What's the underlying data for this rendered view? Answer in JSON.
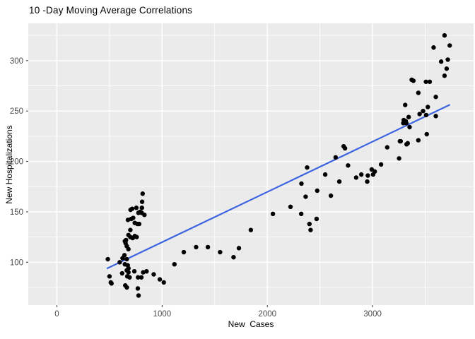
{
  "title": "10 -Day Moving Average Correlations",
  "chart_data": {
    "type": "scatter",
    "title": "10 -Day Moving Average Correlations",
    "xlabel": "New  Cases",
    "ylabel": "New Hospitalizations",
    "legend": false,
    "grid": true,
    "xlim": [
      -272,
      3960
    ],
    "ylim": [
      57.5,
      337
    ],
    "x_ticks": [
      0,
      1000,
      2000,
      3000
    ],
    "x_minor_ticks": [
      500,
      1500,
      2500,
      3500
    ],
    "y_ticks": [
      100,
      150,
      200,
      250,
      300
    ],
    "y_minor_ticks": [
      75,
      125,
      175,
      225,
      275,
      325
    ],
    "panel_bg": "#EBEBEB",
    "grid_color": "#FFFFFF",
    "point_color": "#000000",
    "tick_color": "#333333",
    "tick_label_color": "#4D4D4D",
    "trend_line": {
      "x1": 480,
      "y1": 94,
      "x2": 3730,
      "y2": 256,
      "color": "#3D64E0"
    },
    "points": [
      [
        815,
        168
      ],
      [
        810,
        160
      ],
      [
        808,
        154
      ],
      [
        700,
        152
      ],
      [
        715,
        153
      ],
      [
        755,
        154
      ],
      [
        775,
        149
      ],
      [
        790,
        150
      ],
      [
        806,
        149
      ],
      [
        832,
        147
      ],
      [
        725,
        144
      ],
      [
        675,
        142
      ],
      [
        707,
        143
      ],
      [
        740,
        139
      ],
      [
        765,
        138
      ],
      [
        782,
        138
      ],
      [
        698,
        132
      ],
      [
        680,
        127
      ],
      [
        698,
        125
      ],
      [
        720,
        124
      ],
      [
        740,
        126
      ],
      [
        758,
        125
      ],
      [
        657,
        122
      ],
      [
        646,
        121
      ],
      [
        653,
        119
      ],
      [
        664,
        116
      ],
      [
        680,
        113
      ],
      [
        642,
        107
      ],
      [
        624,
        104
      ],
      [
        664,
        103
      ],
      [
        484,
        103
      ],
      [
        597,
        100
      ],
      [
        646,
        98
      ],
      [
        673,
        97
      ],
      [
        680,
        94
      ],
      [
        664,
        92
      ],
      [
        680,
        90
      ],
      [
        620,
        89
      ],
      [
        736,
        91
      ],
      [
        500,
        86
      ],
      [
        512,
        80
      ],
      [
        519,
        79
      ],
      [
        669,
        86
      ],
      [
        691,
        85
      ],
      [
        820,
        90
      ],
      [
        852,
        91
      ],
      [
        771,
        85
      ],
      [
        803,
        85
      ],
      [
        920,
        88
      ],
      [
        978,
        83
      ],
      [
        1016,
        80
      ],
      [
        650,
        77
      ],
      [
        665,
        75
      ],
      [
        769,
        74
      ],
      [
        776,
        67
      ],
      [
        1117,
        98
      ],
      [
        1206,
        110
      ],
      [
        1323,
        115
      ],
      [
        1435,
        115
      ],
      [
        1551,
        110
      ],
      [
        1679,
        105
      ],
      [
        1730,
        114
      ],
      [
        1843,
        132
      ],
      [
        2053,
        148
      ],
      [
        2220,
        155
      ],
      [
        2324,
        178
      ],
      [
        2364,
        165
      ],
      [
        2378,
        194
      ],
      [
        2322,
        148
      ],
      [
        2400,
        138
      ],
      [
        2411,
        132
      ],
      [
        2468,
        143
      ],
      [
        2474,
        171
      ],
      [
        2550,
        187
      ],
      [
        2604,
        166
      ],
      [
        2649,
        204
      ],
      [
        2684,
        180
      ],
      [
        2725,
        215
      ],
      [
        2738,
        213
      ],
      [
        2767,
        196
      ],
      [
        2844,
        184
      ],
      [
        2893,
        187
      ],
      [
        2949,
        180
      ],
      [
        2955,
        186
      ],
      [
        2992,
        192
      ],
      [
        3005,
        187
      ],
      [
        3021,
        190
      ],
      [
        3081,
        197
      ],
      [
        3139,
        214
      ],
      [
        3684,
        325
      ],
      [
        3580,
        313
      ],
      [
        3733,
        315
      ],
      [
        3652,
        299
      ],
      [
        3715,
        301
      ],
      [
        3704,
        292
      ],
      [
        3684,
        285
      ],
      [
        3372,
        281
      ],
      [
        3388,
        280
      ],
      [
        3507,
        279
      ],
      [
        3543,
        279
      ],
      [
        3435,
        268
      ],
      [
        3601,
        264
      ],
      [
        3310,
        256
      ],
      [
        3525,
        254
      ],
      [
        3480,
        250
      ],
      [
        3447,
        247
      ],
      [
        3509,
        246
      ],
      [
        3343,
        244
      ],
      [
        3296,
        241
      ],
      [
        3315,
        240
      ],
      [
        3292,
        238
      ],
      [
        3321,
        238
      ],
      [
        3352,
        234
      ],
      [
        3601,
        245
      ],
      [
        3435,
        221
      ],
      [
        3515,
        227
      ],
      [
        3267,
        220
      ],
      [
        3260,
        220
      ],
      [
        3323,
        217
      ],
      [
        3334,
        218
      ],
      [
        3252,
        203
      ]
    ]
  }
}
